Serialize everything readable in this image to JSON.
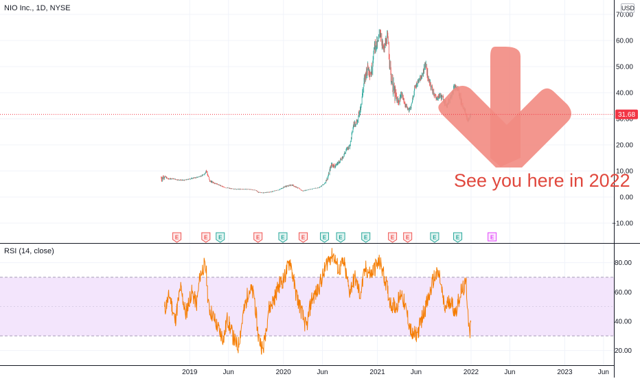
{
  "header": {
    "symbol_title": "NIO Inc., 1D, NYSE",
    "currency": "USD"
  },
  "annotation": {
    "caption": "See you here in 2022",
    "arrow_color": "#f28b82"
  },
  "colors": {
    "up": "#26a69a",
    "down": "#ef5350",
    "rsi_line": "#f57c00",
    "rsi_band": "#f3e5fc",
    "price_line": "#f23645"
  },
  "earnings": {
    "marker_label": "E",
    "events": [
      {
        "date": "2018-11-12",
        "result": "miss"
      },
      {
        "date": "2019-03-05",
        "result": "miss"
      },
      {
        "date": "2019-04-30",
        "result": "beat"
      },
      {
        "date": "2019-09-24",
        "result": "miss"
      },
      {
        "date": "2019-12-30",
        "result": "beat"
      },
      {
        "date": "2020-03-18",
        "result": "miss"
      },
      {
        "date": "2020-06-09",
        "result": "beat"
      },
      {
        "date": "2020-08-11",
        "result": "beat"
      },
      {
        "date": "2020-11-17",
        "result": "beat"
      },
      {
        "date": "2021-03-01",
        "result": "miss"
      },
      {
        "date": "2021-04-29",
        "result": "miss"
      },
      {
        "date": "2021-08-12",
        "result": "beat"
      },
      {
        "date": "2021-11-10",
        "result": "beat"
      },
      {
        "date": "2022-03-24",
        "result": "upcoming"
      }
    ]
  },
  "chart_data": [
    {
      "type": "candlestick",
      "ticker": "NIO Inc., 1D, NYSE",
      "y_axis_position": "right",
      "ylim": [
        -13,
        73
      ],
      "yticks": [
        -10,
        0,
        10,
        20,
        30,
        40,
        50,
        60,
        70
      ],
      "ytick_labels": [
        "−10.00",
        "0.00",
        "10.00",
        "20.00",
        "30.00",
        "40.00",
        "50.00",
        "60.00",
        "70.00"
      ],
      "last_price": 31.68,
      "last_price_label": "31.68",
      "grid": true,
      "legend": "none",
      "x": [
        "2018-09-12",
        "2018-09-25",
        "2018-10-10",
        "2018-10-25",
        "2018-11-15",
        "2018-12-10",
        "2019-01-07",
        "2019-02-01",
        "2019-02-25",
        "2019-03-06",
        "2019-03-20",
        "2019-04-15",
        "2019-05-15",
        "2019-06-17",
        "2019-07-15",
        "2019-08-15",
        "2019-09-16",
        "2019-09-25",
        "2019-10-15",
        "2019-11-15",
        "2019-12-16",
        "2020-01-06",
        "2020-02-03",
        "2020-02-21",
        "2020-03-16",
        "2020-04-06",
        "2020-04-27",
        "2020-05-18",
        "2020-06-08",
        "2020-06-22",
        "2020-07-06",
        "2020-07-20",
        "2020-08-04",
        "2020-08-18",
        "2020-09-01",
        "2020-09-15",
        "2020-10-01",
        "2020-10-15",
        "2020-10-30",
        "2020-11-10",
        "2020-11-23",
        "2020-12-07",
        "2020-12-21",
        "2021-01-04",
        "2021-01-11",
        "2021-01-25",
        "2021-02-09",
        "2021-02-23",
        "2021-03-08",
        "2021-03-22",
        "2021-04-06",
        "2021-04-20",
        "2021-05-04",
        "2021-05-12",
        "2021-05-26",
        "2021-06-09",
        "2021-06-23",
        "2021-07-07",
        "2021-07-21",
        "2021-08-04",
        "2021-08-18",
        "2021-09-01",
        "2021-09-15",
        "2021-09-29",
        "2021-10-13",
        "2021-10-27",
        "2021-11-10",
        "2021-11-24",
        "2021-12-08",
        "2021-12-20",
        "2021-12-30"
      ],
      "close": [
        7.2,
        7.8,
        6.9,
        7.1,
        6.6,
        6.4,
        7.1,
        7.6,
        8.5,
        10.2,
        6.1,
        5.1,
        3.7,
        3.1,
        3.0,
        3.0,
        2.6,
        1.8,
        1.6,
        2.0,
        2.8,
        4.0,
        4.6,
        3.8,
        2.3,
        2.8,
        3.2,
        3.6,
        5.0,
        7.6,
        12.6,
        11.8,
        13.5,
        15.0,
        18.0,
        19.5,
        28.0,
        29.0,
        36.0,
        44.0,
        50.0,
        47.0,
        58.0,
        59.0,
        64.0,
        56.0,
        62.0,
        46.0,
        40.0,
        36.0,
        39.5,
        35.0,
        33.5,
        34.5,
        41.5,
        44.5,
        46.0,
        51.0,
        44.0,
        41.0,
        37.5,
        39.0,
        37.5,
        35.0,
        38.5,
        42.0,
        41.5,
        36.5,
        33.0,
        29.0,
        31.68
      ],
      "high": [
        14.0,
        9.5,
        8.0,
        7.6,
        7.4,
        7.2,
        7.8,
        8.1,
        9.0,
        11.2,
        8.2,
        5.8,
        4.3,
        3.7,
        3.6,
        3.4,
        3.1,
        2.3,
        2.0,
        2.4,
        3.2,
        4.8,
        5.4,
        4.6,
        3.0,
        3.2,
        3.6,
        4.0,
        6.4,
        9.2,
        14.0,
        14.5,
        14.9,
        16.5,
        19.0,
        21.5,
        31.0,
        31.5,
        41.0,
        50.0,
        55.0,
        54.0,
        60.0,
        67.0,
        67.0,
        62.0,
        64.0,
        57.0,
        52.0,
        42.0,
        42.0,
        37.5,
        35.5,
        36.5,
        45.0,
        47.0,
        48.5,
        55.5,
        50.0,
        46.0,
        41.0,
        42.0,
        42.0,
        38.0,
        42.0,
        45.0,
        45.0,
        42.5,
        36.0,
        33.5,
        33.5
      ],
      "low": [
        5.5,
        6.5,
        6.2,
        6.4,
        6.0,
        6.0,
        6.4,
        6.9,
        7.4,
        7.6,
        5.6,
        4.5,
        3.2,
        2.7,
        2.7,
        2.6,
        2.3,
        1.5,
        1.2,
        1.5,
        2.3,
        3.2,
        3.7,
        3.1,
        2.1,
        2.4,
        2.8,
        3.2,
        4.6,
        5.8,
        8.8,
        10.2,
        11.0,
        13.2,
        15.0,
        17.0,
        24.0,
        25.0,
        29.0,
        38.0,
        42.0,
        42.0,
        45.0,
        55.0,
        53.0,
        50.0,
        49.0,
        44.0,
        32.0,
        33.0,
        34.5,
        33.0,
        31.0,
        31.0,
        38.5,
        41.5,
        42.5,
        44.0,
        40.5,
        38.0,
        35.5,
        35.5,
        34.5,
        33.0,
        34.5,
        38.5,
        38.5,
        33.5,
        30.0,
        27.5,
        29.5
      ],
      "xticks": [
        "2019",
        "Jun",
        "2020",
        "Jun",
        "2021",
        "Jun",
        "2022",
        "Jun",
        "2023",
        "Jun"
      ]
    },
    {
      "type": "line",
      "title": "RSI (14, close)",
      "y_axis_position": "right",
      "ylim": [
        10,
        95
      ],
      "yticks": [
        20,
        40,
        60,
        80
      ],
      "ytick_labels": [
        "20.00",
        "40.00",
        "60.00",
        "80.00"
      ],
      "band": [
        30,
        70
      ],
      "mid_line": 50,
      "grid": true,
      "x": [
        "2018-09-25",
        "2018-10-15",
        "2018-11-05",
        "2018-11-26",
        "2018-12-17",
        "2019-01-07",
        "2019-01-28",
        "2019-02-11",
        "2019-02-25",
        "2019-03-06",
        "2019-03-15",
        "2019-04-01",
        "2019-04-22",
        "2019-05-13",
        "2019-05-28",
        "2019-06-17",
        "2019-07-08",
        "2019-07-29",
        "2019-08-19",
        "2019-09-09",
        "2019-09-25",
        "2019-10-14",
        "2019-11-04",
        "2019-11-25",
        "2019-12-16",
        "2020-01-06",
        "2020-01-27",
        "2020-02-17",
        "2020-03-09",
        "2020-03-30",
        "2020-04-20",
        "2020-05-11",
        "2020-06-01",
        "2020-06-22",
        "2020-07-13",
        "2020-08-03",
        "2020-08-24",
        "2020-09-14",
        "2020-10-05",
        "2020-10-26",
        "2020-11-16",
        "2020-12-07",
        "2020-12-28",
        "2021-01-11",
        "2021-02-01",
        "2021-02-22",
        "2021-03-15",
        "2021-04-05",
        "2021-04-26",
        "2021-05-17",
        "2021-06-07",
        "2021-06-28",
        "2021-07-19",
        "2021-08-09",
        "2021-08-30",
        "2021-09-20",
        "2021-10-11",
        "2021-11-01",
        "2021-11-22",
        "2021-12-13",
        "2021-12-27",
        "2021-12-31"
      ],
      "values": [
        48,
        58,
        40,
        63,
        45,
        60,
        52,
        72,
        78,
        75,
        50,
        44,
        35,
        28,
        42,
        30,
        22,
        45,
        62,
        58,
        30,
        20,
        48,
        55,
        65,
        70,
        82,
        60,
        48,
        35,
        55,
        60,
        70,
        82,
        86,
        75,
        80,
        60,
        70,
        58,
        76,
        72,
        78,
        80,
        68,
        52,
        50,
        60,
        45,
        30,
        32,
        45,
        55,
        70,
        72,
        48,
        55,
        46,
        60,
        65,
        28,
        42
      ]
    }
  ]
}
